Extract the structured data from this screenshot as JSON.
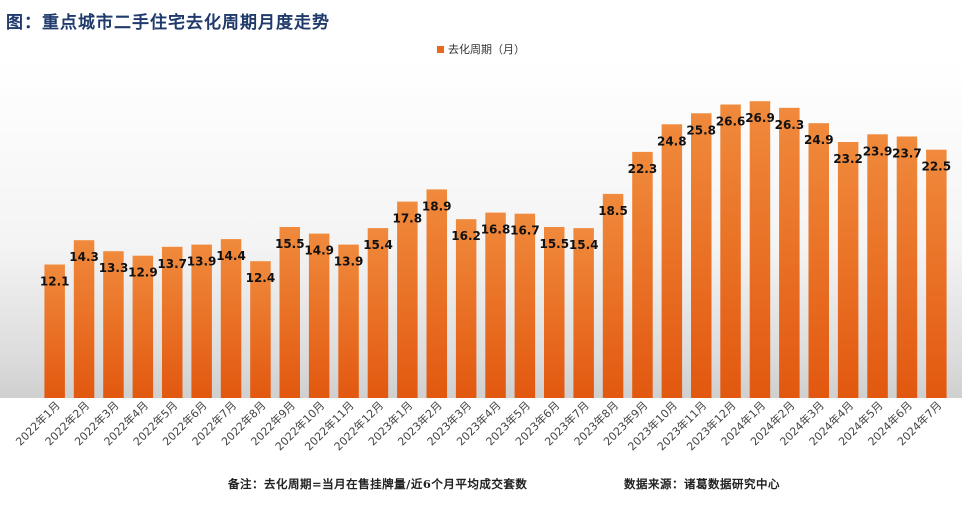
{
  "chart_data": {
    "type": "bar",
    "title": "图：重点城市二手住宅去化周期月度走势",
    "legend": "top-center",
    "series": [
      {
        "name": "去化周期（月）",
        "color": "#e8691b",
        "values": [
          12.1,
          14.3,
          13.3,
          12.9,
          13.7,
          13.9,
          14.4,
          12.4,
          15.5,
          14.9,
          13.9,
          15.4,
          17.8,
          18.9,
          16.2,
          16.8,
          16.7,
          15.5,
          15.4,
          18.5,
          22.3,
          24.8,
          25.8,
          26.6,
          26.9,
          26.3,
          24.9,
          23.2,
          23.9,
          23.7,
          22.5
        ]
      }
    ],
    "categories": [
      "2022年1月",
      "2022年2月",
      "2022年3月",
      "2022年4月",
      "2022年5月",
      "2022年6月",
      "2022年7月",
      "2022年8月",
      "2022年9月",
      "2022年10月",
      "2022年11月",
      "2022年12月",
      "2023年1月",
      "2023年2月",
      "2023年3月",
      "2023年4月",
      "2023年5月",
      "2023年6月",
      "2023年7月",
      "2023年8月",
      "2023年9月",
      "2023年10月",
      "2023年11月",
      "2023年12月",
      "2024年1月",
      "2024年2月",
      "2024年3月",
      "2024年4月",
      "2024年5月",
      "2024年6月",
      "2024年7月"
    ],
    "ylim": [
      0,
      29
    ],
    "grid": false,
    "data_labels": true
  },
  "footnotes": {
    "note": "备注：去化周期=当月在售挂牌量/近6个月平均成交套数",
    "source": "数据来源：诸葛数据研究中心"
  }
}
